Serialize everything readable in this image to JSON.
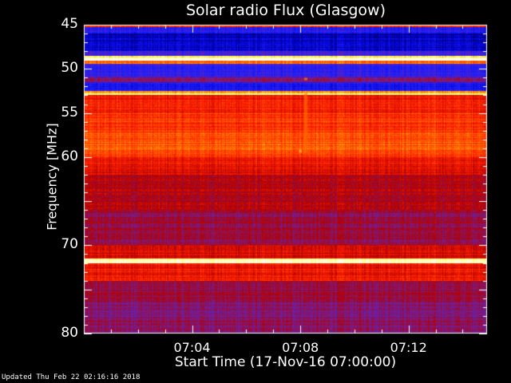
{
  "chart_data": {
    "type": "heatmap",
    "title": "Solar radio Flux (Glasgow)",
    "xlabel": "Start Time (17-Nov-16 07:00:00)",
    "ylabel": "Frequency [MHz]",
    "x_unit": "minutes after 07:00:00",
    "xlim": [
      0,
      14.9
    ],
    "ylim": [
      45,
      80
    ],
    "y_inverted": true,
    "xticks": [
      {
        "value": 4,
        "label": "07:04"
      },
      {
        "value": 8,
        "label": "07:08"
      },
      {
        "value": 12,
        "label": "07:12"
      }
    ],
    "yticks": [
      {
        "value": 45,
        "label": "45"
      },
      {
        "value": 50,
        "label": "50"
      },
      {
        "value": 55,
        "label": "55"
      },
      {
        "value": 60,
        "label": "60"
      },
      {
        "value": 70,
        "label": "70"
      },
      {
        "value": 80,
        "label": "80"
      }
    ],
    "colormap": [
      "#000000",
      "#0000c8",
      "#2020ff",
      "#7020a0",
      "#b00000",
      "#ff2000",
      "#ff8000",
      "#ffff60",
      "#ffffff"
    ],
    "bands": [
      {
        "f": [
          45.0,
          45.3
        ],
        "intensity": 0.62
      },
      {
        "f": [
          45.3,
          46.0
        ],
        "intensity": 0.25
      },
      {
        "f": [
          46.0,
          48.0
        ],
        "intensity": 0.14
      },
      {
        "f": [
          48.0,
          48.5
        ],
        "intensity": 0.3
      },
      {
        "f": [
          48.5,
          48.8
        ],
        "intensity": 0.88
      },
      {
        "f": [
          48.8,
          49.1
        ],
        "intensity": 1.0
      },
      {
        "f": [
          49.1,
          49.4
        ],
        "intensity": 0.7
      },
      {
        "f": [
          49.4,
          51.0
        ],
        "intensity": 0.28
      },
      {
        "f": [
          51.0,
          51.5
        ],
        "intensity": 0.4
      },
      {
        "f": [
          51.5,
          52.5
        ],
        "intensity": 0.22
      },
      {
        "f": [
          52.5,
          52.8
        ],
        "intensity": 0.8
      },
      {
        "f": [
          52.8,
          53.0
        ],
        "intensity": 0.88
      },
      {
        "f": [
          53.0,
          55.0
        ],
        "intensity": 0.6
      },
      {
        "f": [
          55.0,
          57.0
        ],
        "intensity": 0.65
      },
      {
        "f": [
          57.0,
          60.0
        ],
        "intensity": 0.69
      },
      {
        "f": [
          60.0,
          62.0
        ],
        "intensity": 0.58
      },
      {
        "f": [
          62.0,
          66.0
        ],
        "intensity": 0.5
      },
      {
        "f": [
          66.0,
          70.0
        ],
        "intensity": 0.45
      },
      {
        "f": [
          70.0,
          71.5
        ],
        "intensity": 0.55
      },
      {
        "f": [
          71.5,
          72.0
        ],
        "intensity": 0.95
      },
      {
        "f": [
          72.0,
          74.0
        ],
        "intensity": 0.6
      },
      {
        "f": [
          74.0,
          76.0
        ],
        "intensity": 0.45
      },
      {
        "f": [
          76.0,
          80.0
        ],
        "intensity": 0.42
      }
    ],
    "events": [
      {
        "time": 8.2,
        "f": [
          52.8,
          59.5
        ],
        "intensity": 0.72
      },
      {
        "time": 8.2,
        "f": [
          51.0,
          51.3
        ],
        "intensity": 0.75
      },
      {
        "time": 8.0,
        "f": [
          59.2,
          59.5
        ],
        "intensity": 0.8
      }
    ]
  },
  "footer": {
    "updated": "Updated Thu Feb 22 02:16:16 2018"
  }
}
